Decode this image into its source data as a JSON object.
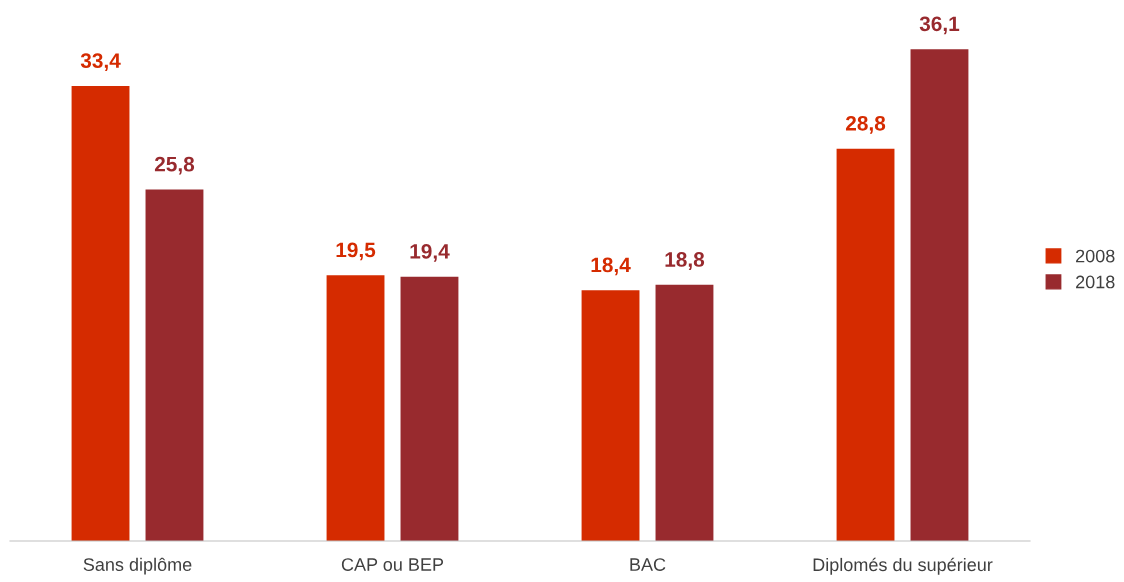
{
  "chart_data": {
    "type": "bar",
    "categories": [
      "Sans diplôme",
      "CAP ou BEP",
      "BAC",
      "Diplomés du supérieur"
    ],
    "series": [
      {
        "name": "2008",
        "color": "#d52b00",
        "values": [
          33.4,
          19.5,
          18.4,
          28.8
        ],
        "value_labels": [
          "33,4",
          "19,5",
          "18,4",
          "28,8"
        ]
      },
      {
        "name": "2018",
        "color": "#982a2e",
        "values": [
          25.8,
          19.4,
          18.8,
          36.1
        ],
        "value_labels": [
          "25,8",
          "19,4",
          "18,8",
          "36,1"
        ]
      }
    ],
    "legend": "right",
    "grid": false
  }
}
